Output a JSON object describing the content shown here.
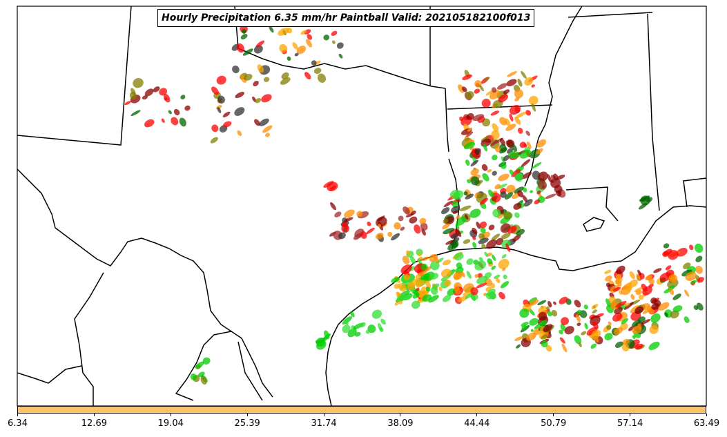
{
  "title": "Hourly Precipitation 6.35 mm/hr Paintball Valid: 202105182100f013",
  "colorbar": {
    "color": "#ffc266",
    "ticks": [
      "6.34",
      "12.69",
      "19.04",
      "25.39",
      "31.74",
      "38.09",
      "44.44",
      "50.79",
      "57.14",
      "63.49"
    ]
  },
  "palette": [
    "#ff0000",
    "#ff8c00",
    "#ffa500",
    "#00cc00",
    "#33dd33",
    "#006400",
    "#8b0000",
    "#a52a2a",
    "#808000",
    "#333333"
  ]
}
